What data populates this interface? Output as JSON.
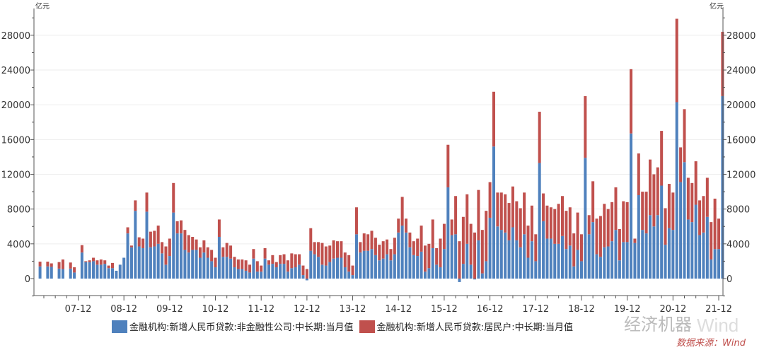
{
  "chart_data": {
    "type": "bar",
    "stacked": true,
    "unit_left": "亿元",
    "unit_right": "亿元",
    "ylim": [
      -2000,
      31000
    ],
    "yticks": [
      0,
      4000,
      8000,
      12000,
      16000,
      20000,
      24000,
      28000
    ],
    "xtick_labels": [
      "07-12",
      "08-12",
      "09-12",
      "10-12",
      "11-12",
      "12-12",
      "13-12",
      "14-12",
      "15-12",
      "16-12",
      "17-12",
      "18-12",
      "19-12",
      "20-12",
      "21-12"
    ],
    "grid": true,
    "legend_position": "bottom",
    "categories": [
      "2007-01",
      "2007-02",
      "2007-03",
      "2007-04",
      "2007-05",
      "2007-06",
      "2007-07",
      "2007-08",
      "2007-09",
      "2007-10",
      "2007-11",
      "2007-12",
      "2008-01",
      "2008-02",
      "2008-03",
      "2008-04",
      "2008-05",
      "2008-06",
      "2008-07",
      "2008-08",
      "2008-09",
      "2008-10",
      "2008-11",
      "2008-12",
      "2009-01",
      "2009-02",
      "2009-03",
      "2009-04",
      "2009-05",
      "2009-06",
      "2009-07",
      "2009-08",
      "2009-09",
      "2009-10",
      "2009-11",
      "2009-12",
      "2010-01",
      "2010-02",
      "2010-03",
      "2010-04",
      "2010-05",
      "2010-06",
      "2010-07",
      "2010-08",
      "2010-09",
      "2010-10",
      "2010-11",
      "2010-12",
      "2011-01",
      "2011-02",
      "2011-03",
      "2011-04",
      "2011-05",
      "2011-06",
      "2011-07",
      "2011-08",
      "2011-09",
      "2011-10",
      "2011-11",
      "2011-12",
      "2012-01",
      "2012-02",
      "2012-03",
      "2012-04",
      "2012-05",
      "2012-06",
      "2012-07",
      "2012-08",
      "2012-09",
      "2012-10",
      "2012-11",
      "2012-12",
      "2013-01",
      "2013-02",
      "2013-03",
      "2013-04",
      "2013-05",
      "2013-06",
      "2013-07",
      "2013-08",
      "2013-09",
      "2013-10",
      "2013-11",
      "2013-12",
      "2014-01",
      "2014-02",
      "2014-03",
      "2014-04",
      "2014-05",
      "2014-06",
      "2014-07",
      "2014-08",
      "2014-09",
      "2014-10",
      "2014-11",
      "2014-12",
      "2015-01",
      "2015-02",
      "2015-03",
      "2015-04",
      "2015-05",
      "2015-06",
      "2015-07",
      "2015-08",
      "2015-09",
      "2015-10",
      "2015-11",
      "2015-12",
      "2016-01",
      "2016-02",
      "2016-03",
      "2016-04",
      "2016-05",
      "2016-06",
      "2016-07",
      "2016-08",
      "2016-09",
      "2016-10",
      "2016-11",
      "2016-12",
      "2017-01",
      "2017-02",
      "2017-03",
      "2017-04",
      "2017-05",
      "2017-06",
      "2017-07",
      "2017-08",
      "2017-09",
      "2017-10",
      "2017-11",
      "2017-12",
      "2018-01",
      "2018-02",
      "2018-03",
      "2018-04",
      "2018-05",
      "2018-06",
      "2018-07",
      "2018-08",
      "2018-09",
      "2018-10",
      "2018-11",
      "2018-12",
      "2019-01",
      "2019-02",
      "2019-03",
      "2019-04",
      "2019-05",
      "2019-06",
      "2019-07",
      "2019-08",
      "2019-09",
      "2019-10",
      "2019-11",
      "2019-12",
      "2020-01",
      "2020-02",
      "2020-03",
      "2020-04",
      "2020-05",
      "2020-06",
      "2020-07",
      "2020-08",
      "2020-09",
      "2020-10",
      "2020-11",
      "2020-12",
      "2021-01",
      "2021-02",
      "2021-03",
      "2021-04",
      "2021-05",
      "2021-06",
      "2021-07",
      "2021-08",
      "2021-09",
      "2021-10",
      "2021-11",
      "2021-12",
      "2022-01"
    ],
    "series": [
      {
        "name": "金融机构:新增人民币贷款:非金融性公司:中长期:当月值",
        "color": "#4f81bd",
        "values": [
          null,
          1400,
          null,
          1400,
          1350,
          null,
          1150,
          1100,
          null,
          1150,
          700,
          null,
          3000,
          1900,
          1900,
          2000,
          1600,
          1600,
          1700,
          1200,
          1200,
          900,
          1600,
          2400,
          5200,
          3600,
          7800,
          3700,
          3500,
          7700,
          3600,
          3700,
          4000,
          2900,
          1600,
          2600,
          7600,
          5200,
          5200,
          3300,
          3000,
          3300,
          3300,
          2400,
          3000,
          2400,
          2000,
          1300,
          4800,
          2500,
          2500,
          2300,
          1300,
          1100,
          1100,
          900,
          700,
          2300,
          800,
          800,
          2300,
          1600,
          1700,
          1300,
          1700,
          1700,
          800,
          1200,
          1300,
          1600,
          400,
          -200,
          3200,
          2800,
          2500,
          1600,
          1500,
          1900,
          2300,
          2400,
          2400,
          1300,
          800,
          400,
          5100,
          3000,
          3200,
          3200,
          3400,
          2700,
          2100,
          2300,
          2800,
          2100,
          2800,
          5300,
          6100,
          5300,
          3600,
          2700,
          2600,
          3100,
          800,
          1200,
          3500,
          1600,
          1300,
          3400,
          10500,
          5000,
          5100,
          -400,
          1700,
          4000,
          1600,
          -100,
          4400,
          600,
          2000,
          7000,
          15200,
          6000,
          5600,
          5300,
          4400,
          5900,
          4400,
          3600,
          5100,
          2400,
          4300,
          2000,
          13300,
          6600,
          4600,
          4600,
          4000,
          4000,
          4900,
          3400,
          3800,
          1400,
          3300,
          2000,
          13900,
          5100,
          6500,
          2800,
          2500,
          3600,
          3700,
          4300,
          5600,
          2100,
          4200,
          4200,
          16700,
          4100,
          9600,
          5600,
          5200,
          7300,
          6000,
          7300,
          10700,
          3900,
          5800,
          5600,
          20300,
          11100,
          13400,
          6800,
          6500,
          8500,
          5000,
          5300,
          7100,
          2200,
          3400,
          3400,
          21000
        ]
      },
      {
        "name": "金融机构:新增人民币贷款:居民户:中长期:当月值",
        "color": "#c0504d",
        "values": [
          null,
          550,
          null,
          550,
          400,
          null,
          750,
          1100,
          null,
          700,
          600,
          null,
          850,
          100,
          200,
          400,
          500,
          600,
          400,
          300,
          600,
          0,
          0,
          0,
          700,
          200,
          1200,
          1050,
          1100,
          2200,
          1800,
          1800,
          2100,
          1300,
          2100,
          2000,
          3400,
          1400,
          1500,
          2300,
          2000,
          1500,
          1200,
          1200,
          1400,
          1200,
          1300,
          1100,
          2000,
          1100,
          1600,
          1500,
          1200,
          1100,
          1100,
          1200,
          900,
          1100,
          1200,
          700,
          1200,
          500,
          1000,
          600,
          1000,
          1100,
          1300,
          1700,
          1500,
          1200,
          1100,
          1100,
          2600,
          1400,
          1700,
          2500,
          2200,
          1900,
          2100,
          1900,
          1900,
          1700,
          1900,
          1100,
          3100,
          1200,
          2000,
          1900,
          2100,
          2000,
          1800,
          2000,
          1700,
          1300,
          1900,
          1600,
          3300,
          1600,
          1700,
          1600,
          2000,
          3000,
          3000,
          2800,
          3300,
          1900,
          3300,
          2900,
          4900,
          1800,
          4400,
          4300,
          5400,
          5700,
          4700,
          5300,
          5800,
          5000,
          5800,
          4100,
          6300,
          3900,
          4300,
          4400,
          4300,
          4700,
          4500,
          4500,
          4800,
          3700,
          4100,
          3100,
          5900,
          3200,
          3800,
          3600,
          4000,
          4600,
          4600,
          4400,
          4400,
          3800,
          4300,
          3100,
          7100,
          2200,
          4700,
          4100,
          4700,
          5000,
          4300,
          4500,
          4900,
          3600,
          4700,
          4600,
          7400,
          500,
          4800,
          4400,
          4800,
          6400,
          6000,
          5500,
          6300,
          4200,
          5100,
          4300,
          9600,
          4000,
          6100,
          4800,
          4500,
          5000,
          4000,
          4200,
          4500,
          4300,
          5800,
          3500,
          7400
        ]
      }
    ]
  },
  "watermark": {
    "text": "经济机器",
    "brand": "Wind"
  },
  "source": "数据来源：Wind"
}
